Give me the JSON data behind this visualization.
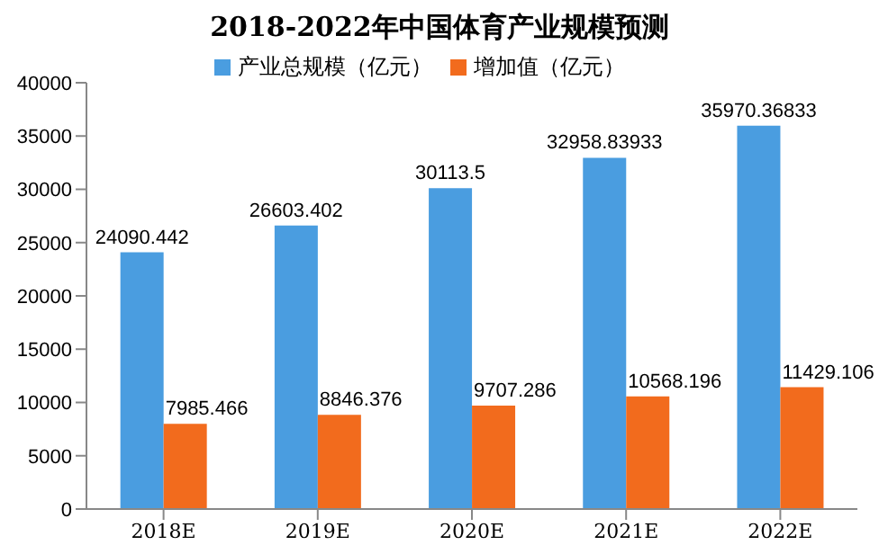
{
  "chart_data": {
    "type": "bar",
    "title": "2018-2022年中国体育产业规模预测",
    "categories": [
      "2018E",
      "2019E",
      "2020E",
      "2021E",
      "2022E"
    ],
    "series": [
      {
        "name": "产业总规模（亿元）",
        "color": "#4a9de0",
        "values": [
          24090.442,
          26603.402,
          30113.5,
          32958.83933,
          35970.36833
        ]
      },
      {
        "name": "增加值（亿元）",
        "color": "#f26b1d",
        "values": [
          7985.466,
          8846.376,
          9707.286,
          10568.196,
          11429.106
        ]
      }
    ],
    "ylim": [
      0,
      40000
    ],
    "yticks": [
      0,
      5000,
      10000,
      15000,
      20000,
      25000,
      30000,
      35000,
      40000
    ],
    "grid": false,
    "legend": "top",
    "data_labels": true
  }
}
